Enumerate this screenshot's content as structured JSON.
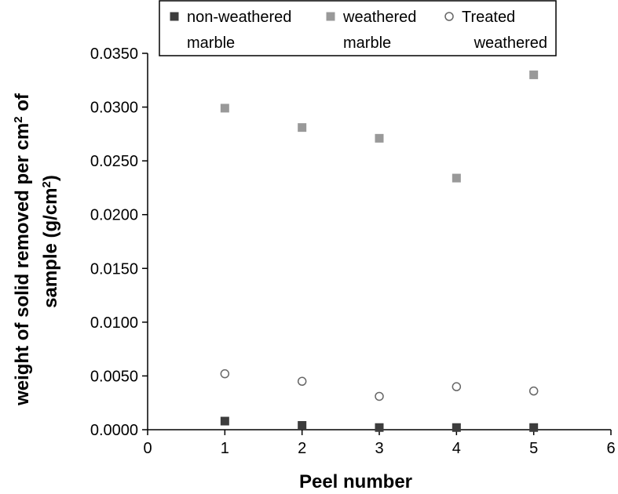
{
  "chart_data": {
    "type": "scatter",
    "title": "",
    "xlabel": "Peel number",
    "ylabel_line1": "weight of solid removed per cm",
    "ylabel_line1_sup": "2",
    "ylabel_line1_end": " of",
    "ylabel_line2": "sample (g/cm",
    "ylabel_line2_sup": "2",
    "ylabel_line2_end": ")",
    "xlim": [
      0,
      6
    ],
    "ylim": [
      0,
      0.035
    ],
    "xticks": [
      "0",
      "1",
      "2",
      "3",
      "4",
      "5",
      "6"
    ],
    "yticks": [
      "0.0000",
      "0.0050",
      "0.0100",
      "0.0150",
      "0.0200",
      "0.0250",
      "0.0300",
      "0.0350"
    ],
    "grid": false,
    "legend_position": "top",
    "series": [
      {
        "name_line1": "non-weathered",
        "name_line2": "marble",
        "marker": "filled-square",
        "color": "#3d3d3d",
        "x": [
          1,
          2,
          3,
          4,
          5
        ],
        "y": [
          0.0008,
          0.0004,
          0.0002,
          0.0002,
          0.0002
        ]
      },
      {
        "name_line1": "weathered",
        "name_line2": "marble",
        "marker": "filled-square",
        "color": "#999999",
        "x": [
          1,
          2,
          3,
          4,
          5
        ],
        "y": [
          0.0299,
          0.0281,
          0.0271,
          0.0234,
          0.033
        ]
      },
      {
        "name_line1": "Treated",
        "name_line2": "weathered",
        "marker": "open-circle",
        "color": "#666666",
        "x": [
          1,
          2,
          3,
          4,
          5
        ],
        "y": [
          0.0052,
          0.0045,
          0.0031,
          0.004,
          0.0036
        ]
      }
    ]
  }
}
